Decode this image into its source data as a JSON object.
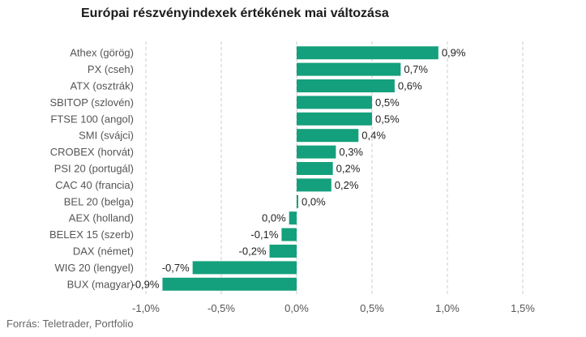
{
  "title": "Európai részvényindexek értékének mai változása",
  "source": "Forrás: Teletrader, Portfolio",
  "chart_data": {
    "type": "bar",
    "orientation": "horizontal",
    "title": "Európai részvényindexek értékének mai változása",
    "categories": [
      "Athex (görög)",
      "PX (cseh)",
      "ATX (osztrák)",
      "SBITOP (szlovén)",
      "FTSE 100 (angol)",
      "SMI (svájci)",
      "CROBEX (horvát)",
      "PSI 20 (portugál)",
      "CAC 40 (francia)",
      "BEL 20 (belga)",
      "AEX (holland)",
      "BELEX 15 (szerb)",
      "DAX (német)",
      "WIG 20 (lengyel)",
      "BUX (magyar)"
    ],
    "values": [
      0.94,
      0.69,
      0.65,
      0.5,
      0.5,
      0.41,
      0.26,
      0.24,
      0.23,
      0.01,
      -0.05,
      -0.1,
      -0.18,
      -0.69,
      -0.89
    ],
    "data_labels": [
      "0,9%",
      "0,7%",
      "0,6%",
      "0,5%",
      "0,5%",
      "0,4%",
      "0,3%",
      "0,2%",
      "0,2%",
      "0,0%",
      "0,0%",
      "-0,1%",
      "-0,2%",
      "-0,7%",
      "-0,9%"
    ],
    "xlim": [
      -1.0,
      1.5
    ],
    "x_ticks": [
      -1.0,
      -0.5,
      0.0,
      0.5,
      1.0,
      1.5
    ],
    "x_tick_labels": [
      "-1,0%",
      "-0,5%",
      "0,0%",
      "0,5%",
      "1,0%",
      "1,5%"
    ],
    "grid": true,
    "grid_style": "dashed vertical",
    "bar_color": "#14a07c",
    "grid_color": "#cccccc",
    "label_color": "#555555",
    "value_label_color": "#222222"
  }
}
